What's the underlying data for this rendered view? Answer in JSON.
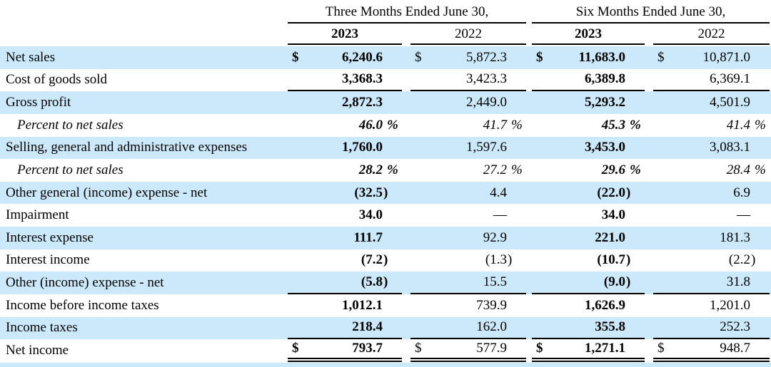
{
  "table": {
    "title": "income-statement",
    "currency_symbol": "$",
    "colors": {
      "stripe_blue": "#cbe9fa",
      "text": "#000000",
      "rule": "#000000"
    },
    "header": {
      "groups": [
        {
          "label": "Three Months Ended June 30,",
          "years": [
            "2023",
            "2022"
          ]
        },
        {
          "label": "Six Months Ended June 30,",
          "years": [
            "2023",
            "2022"
          ]
        }
      ],
      "bold_columns": [
        0,
        2
      ]
    },
    "rows": [
      {
        "label": "Net sales",
        "italic": false,
        "shaded": true,
        "currency": true,
        "rule_below": "none",
        "values": [
          "6,240.6",
          "5,872.3",
          "11,683.0",
          "10,871.0"
        ]
      },
      {
        "label": "Cost of goods sold",
        "italic": false,
        "shaded": false,
        "currency": false,
        "rule_below": "single",
        "values": [
          "3,368.3",
          "3,423.3",
          "6,389.8",
          "6,369.1"
        ]
      },
      {
        "label": "Gross profit",
        "italic": false,
        "shaded": true,
        "currency": false,
        "rule_below": "none",
        "values": [
          "2,872.3",
          "2,449.0",
          "5,293.2",
          "4,501.9"
        ]
      },
      {
        "label": "Percent to net sales",
        "italic": true,
        "shaded": false,
        "currency": false,
        "rule_below": "none",
        "values": [
          "46.0 %",
          "41.7 %",
          "45.3 %",
          "41.4 %"
        ]
      },
      {
        "label": "Selling, general and administrative expenses",
        "italic": false,
        "shaded": true,
        "currency": false,
        "rule_below": "none",
        "values": [
          "1,760.0",
          "1,597.6",
          "3,453.0",
          "3,083.1"
        ]
      },
      {
        "label": "Percent to net sales",
        "italic": true,
        "shaded": false,
        "currency": false,
        "rule_below": "none",
        "values": [
          "28.2 %",
          "27.2 %",
          "29.6 %",
          "28.4 %"
        ]
      },
      {
        "label": "Other general (income) expense - net",
        "italic": false,
        "shaded": true,
        "currency": false,
        "rule_below": "none",
        "values": [
          "(32.5)",
          "4.4",
          "(22.0)",
          "6.9"
        ]
      },
      {
        "label": "Impairment",
        "italic": false,
        "shaded": false,
        "currency": false,
        "rule_below": "none",
        "values": [
          "34.0",
          "—",
          "34.0",
          "—"
        ]
      },
      {
        "label": "Interest expense",
        "italic": false,
        "shaded": true,
        "currency": false,
        "rule_below": "none",
        "values": [
          "111.7",
          "92.9",
          "221.0",
          "181.3"
        ]
      },
      {
        "label": "Interest income",
        "italic": false,
        "shaded": false,
        "currency": false,
        "rule_below": "none",
        "values": [
          "(7.2)",
          "(1.3)",
          "(10.7)",
          "(2.2)"
        ]
      },
      {
        "label": "Other (income) expense - net",
        "italic": false,
        "shaded": true,
        "currency": false,
        "rule_below": "single",
        "values": [
          "(5.8)",
          "15.5",
          "(9.0)",
          "31.8"
        ]
      },
      {
        "label": "Income before income taxes",
        "italic": false,
        "shaded": false,
        "currency": false,
        "rule_below": "none",
        "values": [
          "1,012.1",
          "739.9",
          "1,626.9",
          "1,201.0"
        ]
      },
      {
        "label": "Income taxes",
        "italic": false,
        "shaded": true,
        "currency": false,
        "rule_below": "single",
        "values": [
          "218.4",
          "162.0",
          "355.8",
          "252.3"
        ]
      },
      {
        "label": "Net income",
        "italic": false,
        "shaded": false,
        "currency": true,
        "rule_below": "double",
        "values": [
          "793.7",
          "577.9",
          "1,271.1",
          "948.7"
        ]
      }
    ]
  }
}
